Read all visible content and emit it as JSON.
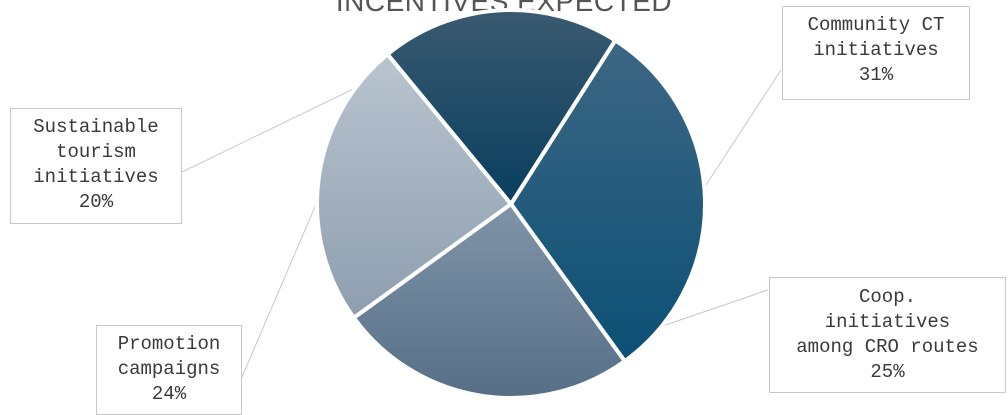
{
  "chart_data": {
    "type": "pie",
    "title": "INCENTIVES EXPECTED",
    "legend": "callouts",
    "slices": [
      {
        "key": "community",
        "label_lines": [
          "Community CT",
          "initiatives"
        ],
        "value_label": "31%",
        "value": 31,
        "color": "#0f5577"
      },
      {
        "key": "coop",
        "label_lines": [
          "Coop.",
          "initiatives",
          "among CRO routes"
        ],
        "value_label": "25%",
        "value": 25,
        "color": "#6e889f"
      },
      {
        "key": "promotion",
        "label_lines": [
          "Promotion",
          "campaigns"
        ],
        "value_label": "24%",
        "value": 24,
        "color": "#a9b7c6"
      },
      {
        "key": "sustainable",
        "label_lines": [
          "Sustainable",
          "tourism",
          "initiatives"
        ],
        "value_label": "20%",
        "value": 20,
        "color": "#0d4664"
      }
    ]
  }
}
